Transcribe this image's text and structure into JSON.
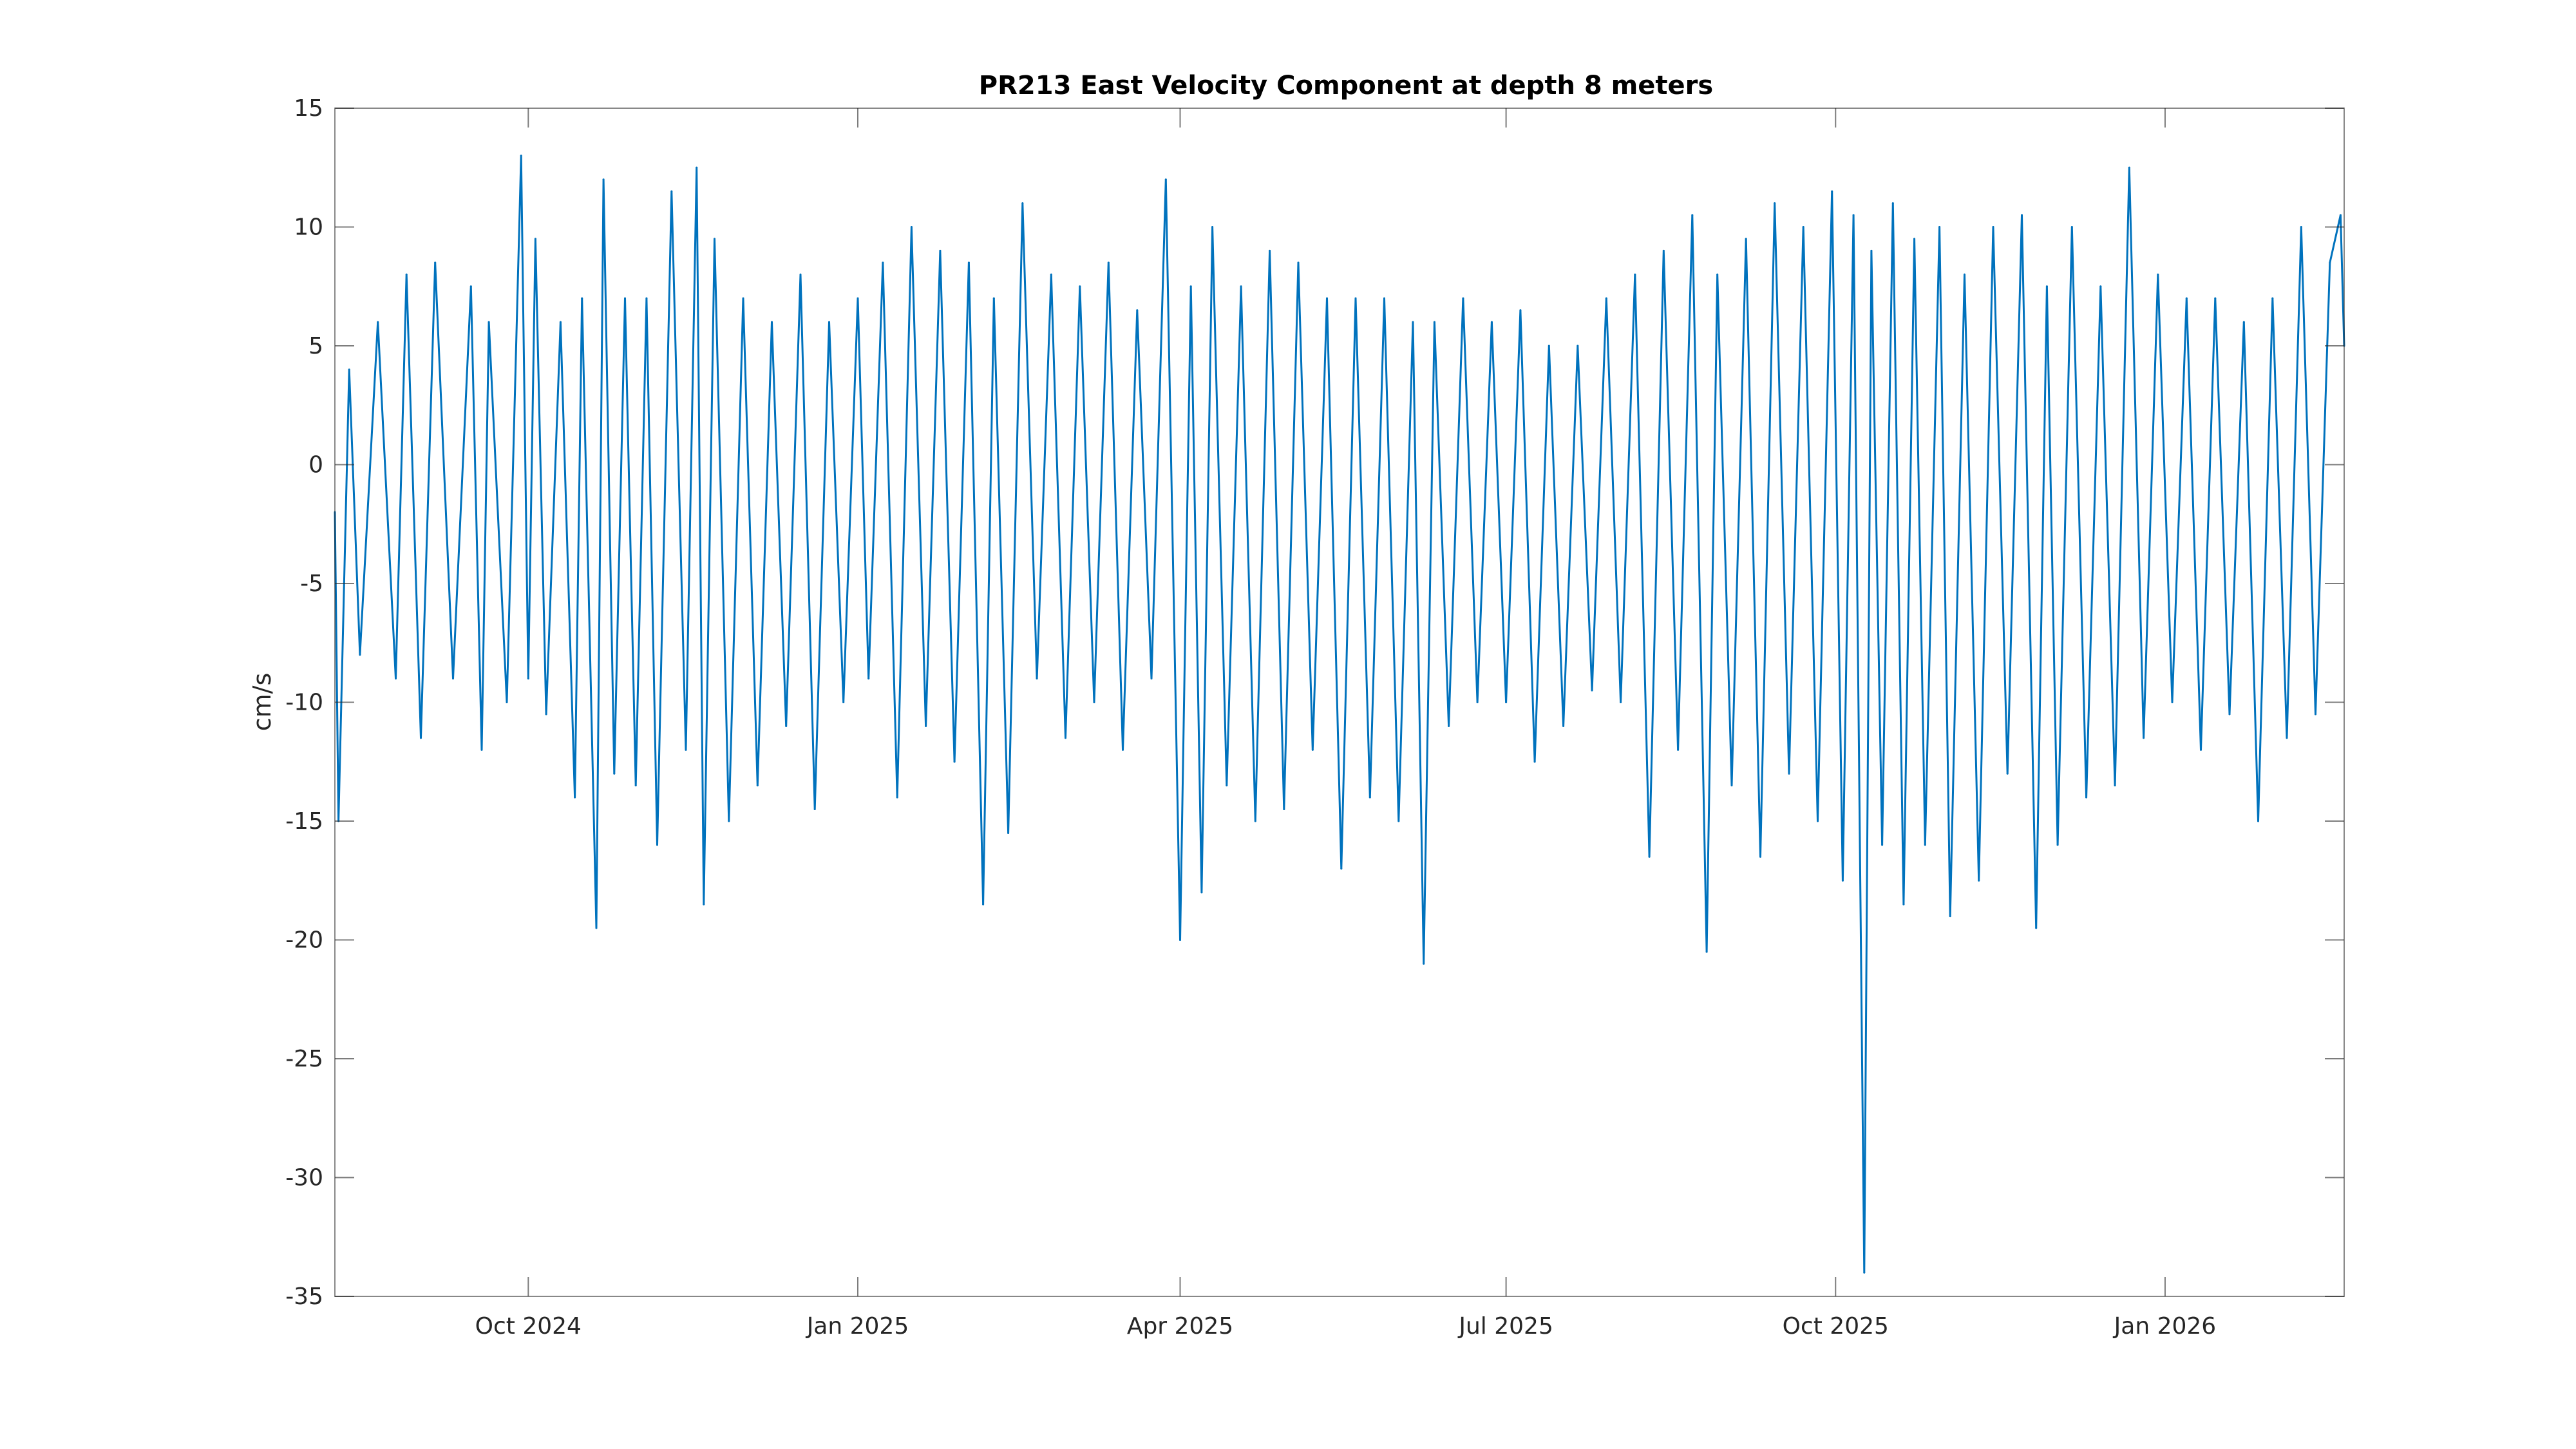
{
  "chart_data": {
    "type": "line",
    "title": "PR213 East Velocity Component at depth 8 meters",
    "xlabel": "",
    "ylabel": "cm/s",
    "x_range": [
      "2024-08-08",
      "2026-02-20"
    ],
    "ylim": [
      -35,
      15
    ],
    "y_ticks": [
      15,
      10,
      5,
      0,
      -5,
      -10,
      -15,
      -20,
      -25,
      -30,
      -35
    ],
    "y_tick_labels": [
      "15",
      "10",
      "5",
      "0",
      "-5",
      "-10",
      "-15",
      "-20",
      "-25",
      "-30",
      "-35"
    ],
    "x_ticks": [
      {
        "date": "2024-10-01",
        "label": "Oct 2024"
      },
      {
        "date": "2025-01-01",
        "label": "Jan 2025"
      },
      {
        "date": "2025-04-01",
        "label": "Apr 2025"
      },
      {
        "date": "2025-07-01",
        "label": "Jul 2025"
      },
      {
        "date": "2025-10-01",
        "label": "Oct 2025"
      },
      {
        "date": "2026-01-01",
        "label": "Jan 2026"
      }
    ],
    "grid": false,
    "series": [
      {
        "color": "#0072BD",
        "points": [
          [
            "2024-08-08",
            -2.0
          ],
          [
            "2024-08-09",
            -15.0
          ],
          [
            "2024-08-12",
            4.0
          ],
          [
            "2024-08-15",
            -8.0
          ],
          [
            "2024-08-20",
            6.0
          ],
          [
            "2024-08-25",
            -9.0
          ],
          [
            "2024-08-28",
            8.0
          ],
          [
            "2024-09-01",
            -11.5
          ],
          [
            "2024-09-05",
            8.5
          ],
          [
            "2024-09-10",
            -9.0
          ],
          [
            "2024-09-15",
            7.5
          ],
          [
            "2024-09-18",
            -12.0
          ],
          [
            "2024-09-20",
            6.0
          ],
          [
            "2024-09-25",
            -10.0
          ],
          [
            "2024-09-29",
            13.0
          ],
          [
            "2024-10-01",
            -9.0
          ],
          [
            "2024-10-03",
            9.5
          ],
          [
            "2024-10-06",
            -10.5
          ],
          [
            "2024-10-10",
            6.0
          ],
          [
            "2024-10-14",
            -14.0
          ],
          [
            "2024-10-16",
            7.0
          ],
          [
            "2024-10-20",
            -19.5
          ],
          [
            "2024-10-22",
            12.0
          ],
          [
            "2024-10-25",
            -13.0
          ],
          [
            "2024-10-28",
            7.0
          ],
          [
            "2024-10-31",
            -13.5
          ],
          [
            "2024-11-03",
            7.0
          ],
          [
            "2024-11-06",
            -16.0
          ],
          [
            "2024-11-10",
            11.5
          ],
          [
            "2024-11-14",
            -12.0
          ],
          [
            "2024-11-17",
            12.5
          ],
          [
            "2024-11-19",
            -18.5
          ],
          [
            "2024-11-22",
            9.5
          ],
          [
            "2024-11-26",
            -15.0
          ],
          [
            "2024-11-30",
            7.0
          ],
          [
            "2024-12-04",
            -13.5
          ],
          [
            "2024-12-08",
            6.0
          ],
          [
            "2024-12-12",
            -11.0
          ],
          [
            "2024-12-16",
            8.0
          ],
          [
            "2024-12-20",
            -14.5
          ],
          [
            "2024-12-24",
            6.0
          ],
          [
            "2024-12-28",
            -10.0
          ],
          [
            "2025-01-01",
            7.0
          ],
          [
            "2025-01-04",
            -9.0
          ],
          [
            "2025-01-08",
            8.5
          ],
          [
            "2025-01-12",
            -14.0
          ],
          [
            "2025-01-16",
            10.0
          ],
          [
            "2025-01-20",
            -11.0
          ],
          [
            "2025-01-24",
            9.0
          ],
          [
            "2025-01-28",
            -12.5
          ],
          [
            "2025-02-01",
            8.5
          ],
          [
            "2025-02-05",
            -18.5
          ],
          [
            "2025-02-08",
            7.0
          ],
          [
            "2025-02-12",
            -15.5
          ],
          [
            "2025-02-16",
            11.0
          ],
          [
            "2025-02-20",
            -9.0
          ],
          [
            "2025-02-24",
            8.0
          ],
          [
            "2025-02-28",
            -11.5
          ],
          [
            "2025-03-04",
            7.5
          ],
          [
            "2025-03-08",
            -10.0
          ],
          [
            "2025-03-12",
            8.5
          ],
          [
            "2025-03-16",
            -12.0
          ],
          [
            "2025-03-20",
            6.5
          ],
          [
            "2025-03-24",
            -9.0
          ],
          [
            "2025-03-28",
            12.0
          ],
          [
            "2025-04-01",
            -20.0
          ],
          [
            "2025-04-04",
            7.5
          ],
          [
            "2025-04-07",
            -18.0
          ],
          [
            "2025-04-10",
            10.0
          ],
          [
            "2025-04-14",
            -13.5
          ],
          [
            "2025-04-18",
            7.5
          ],
          [
            "2025-04-22",
            -15.0
          ],
          [
            "2025-04-26",
            9.0
          ],
          [
            "2025-04-30",
            -14.5
          ],
          [
            "2025-05-04",
            8.5
          ],
          [
            "2025-05-08",
            -12.0
          ],
          [
            "2025-05-12",
            7.0
          ],
          [
            "2025-05-16",
            -17.0
          ],
          [
            "2025-05-20",
            7.0
          ],
          [
            "2025-05-24",
            -14.0
          ],
          [
            "2025-05-28",
            7.0
          ],
          [
            "2025-06-01",
            -15.0
          ],
          [
            "2025-06-05",
            6.0
          ],
          [
            "2025-06-08",
            -21.0
          ],
          [
            "2025-06-11",
            6.0
          ],
          [
            "2025-06-15",
            -11.0
          ],
          [
            "2025-06-19",
            7.0
          ],
          [
            "2025-06-23",
            -10.0
          ],
          [
            "2025-06-27",
            6.0
          ],
          [
            "2025-07-01",
            -10.0
          ],
          [
            "2025-07-05",
            6.5
          ],
          [
            "2025-07-09",
            -12.5
          ],
          [
            "2025-07-13",
            5.0
          ],
          [
            "2025-07-17",
            -11.0
          ],
          [
            "2025-07-21",
            5.0
          ],
          [
            "2025-07-25",
            -9.5
          ],
          [
            "2025-07-29",
            7.0
          ],
          [
            "2025-08-02",
            -10.0
          ],
          [
            "2025-08-06",
            8.0
          ],
          [
            "2025-08-10",
            -16.5
          ],
          [
            "2025-08-14",
            9.0
          ],
          [
            "2025-08-18",
            -12.0
          ],
          [
            "2025-08-22",
            10.5
          ],
          [
            "2025-08-26",
            -20.5
          ],
          [
            "2025-08-29",
            8.0
          ],
          [
            "2025-09-02",
            -13.5
          ],
          [
            "2025-09-06",
            9.5
          ],
          [
            "2025-09-10",
            -16.5
          ],
          [
            "2025-09-14",
            11.0
          ],
          [
            "2025-09-18",
            -13.0
          ],
          [
            "2025-09-22",
            10.0
          ],
          [
            "2025-09-26",
            -15.0
          ],
          [
            "2025-09-30",
            11.5
          ],
          [
            "2025-10-03",
            -17.5
          ],
          [
            "2025-10-06",
            10.5
          ],
          [
            "2025-10-09",
            -34.0
          ],
          [
            "2025-10-11",
            9.0
          ],
          [
            "2025-10-14",
            -16.0
          ],
          [
            "2025-10-17",
            11.0
          ],
          [
            "2025-10-20",
            -18.5
          ],
          [
            "2025-10-23",
            9.5
          ],
          [
            "2025-10-26",
            -16.0
          ],
          [
            "2025-10-30",
            10.0
          ],
          [
            "2025-11-02",
            -19.0
          ],
          [
            "2025-11-06",
            8.0
          ],
          [
            "2025-11-10",
            -17.5
          ],
          [
            "2025-11-14",
            10.0
          ],
          [
            "2025-11-18",
            -13.0
          ],
          [
            "2025-11-22",
            10.5
          ],
          [
            "2025-11-26",
            -19.5
          ],
          [
            "2025-11-29",
            7.5
          ],
          [
            "2025-12-02",
            -16.0
          ],
          [
            "2025-12-06",
            10.0
          ],
          [
            "2025-12-10",
            -14.0
          ],
          [
            "2025-12-14",
            7.5
          ],
          [
            "2025-12-18",
            -13.5
          ],
          [
            "2025-12-22",
            12.5
          ],
          [
            "2025-12-26",
            -11.5
          ],
          [
            "2025-12-30",
            8.0
          ],
          [
            "2026-01-03",
            -10.0
          ],
          [
            "2026-01-07",
            7.0
          ],
          [
            "2026-01-11",
            -12.0
          ],
          [
            "2026-01-15",
            7.0
          ],
          [
            "2026-01-19",
            -10.5
          ],
          [
            "2026-01-23",
            6.0
          ],
          [
            "2026-01-27",
            -15.0
          ],
          [
            "2026-01-31",
            7.0
          ],
          [
            "2026-02-04",
            -11.5
          ],
          [
            "2026-02-08",
            10.0
          ],
          [
            "2026-02-12",
            -10.5
          ],
          [
            "2026-02-16",
            8.5
          ],
          [
            "2026-02-19",
            10.5
          ],
          [
            "2026-02-20",
            5.0
          ]
        ]
      }
    ]
  }
}
